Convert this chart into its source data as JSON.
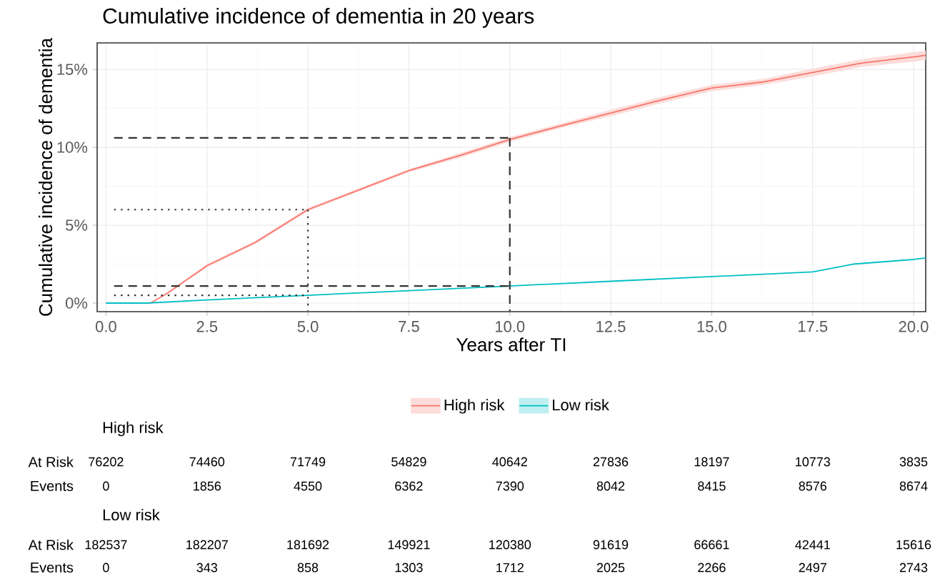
{
  "chart_data": {
    "type": "line",
    "title": "Cumulative incidence of dementia in 20 years",
    "xlabel": "Years after TI",
    "ylabel": "Cumulative incidence of dementia",
    "xlim": [
      -0.22,
      20.3
    ],
    "ylim": [
      -0.55,
      16.7
    ],
    "xticks": [
      {
        "value": 0,
        "label": "0.0"
      },
      {
        "value": 2.5,
        "label": "2.5"
      },
      {
        "value": 5,
        "label": "5.0"
      },
      {
        "value": 7.5,
        "label": "7.5"
      },
      {
        "value": 10,
        "label": "10.0"
      },
      {
        "value": 12.5,
        "label": "12.5"
      },
      {
        "value": 15,
        "label": "15.0"
      },
      {
        "value": 17.5,
        "label": "17.5"
      },
      {
        "value": 20,
        "label": "20.0"
      }
    ],
    "yticks": [
      {
        "value": 0,
        "label": "0%"
      },
      {
        "value": 5,
        "label": "5%"
      },
      {
        "value": 10,
        "label": "10%"
      },
      {
        "value": 15,
        "label": "15%"
      }
    ],
    "grid": true,
    "legend": "bottom",
    "series": [
      {
        "name": "High risk",
        "color": "#f8766d",
        "x": [
          0,
          1.1,
          1.5,
          2.5,
          3.7,
          5,
          6.3,
          7.5,
          8.8,
          10,
          11.3,
          12.5,
          13.7,
          15,
          16.3,
          17.5,
          18.7,
          20,
          20.3
        ],
        "values": [
          0,
          0,
          0.6,
          2.4,
          3.9,
          6.0,
          7.3,
          8.5,
          9.5,
          10.5,
          11.4,
          12.2,
          13.0,
          13.8,
          14.2,
          14.8,
          15.4,
          15.8,
          15.9
        ],
        "lower": [
          0,
          0,
          0.55,
          2.3,
          3.8,
          5.9,
          7.2,
          8.4,
          9.35,
          10.35,
          11.25,
          12.0,
          12.8,
          13.6,
          14.0,
          14.55,
          15.15,
          15.5,
          15.6
        ],
        "upper": [
          0,
          0,
          0.65,
          2.5,
          4.0,
          6.1,
          7.4,
          8.6,
          9.65,
          10.65,
          11.55,
          12.4,
          13.2,
          14.0,
          14.4,
          15.05,
          15.65,
          16.1,
          16.2
        ]
      },
      {
        "name": "Low risk",
        "color": "#00bfc4",
        "x": [
          0,
          1,
          2.5,
          5,
          7.5,
          10,
          12.5,
          15,
          17.5,
          18.5,
          20,
          20.3
        ],
        "values": [
          0,
          0,
          0.2,
          0.5,
          0.8,
          1.1,
          1.4,
          1.7,
          2.0,
          2.5,
          2.8,
          2.9
        ]
      },
      {
        "color": "#333333",
        "line_style": "dotted",
        "x": [
          0.2,
          5
        ],
        "values": [
          6.0,
          6.0
        ]
      },
      {
        "color": "#333333",
        "line_style": "dotted",
        "x": [
          5,
          5
        ],
        "values": [
          6.0,
          -0.5
        ]
      },
      {
        "color": "#333333",
        "line_style": "dotted",
        "x": [
          0.2,
          5
        ],
        "values": [
          0.5,
          0.5
        ]
      },
      {
        "color": "#333333",
        "line_style": "dashed",
        "x": [
          0.2,
          10
        ],
        "values": [
          10.6,
          10.6
        ]
      },
      {
        "color": "#333333",
        "line_style": "dashed",
        "x": [
          10,
          10
        ],
        "values": [
          10.6,
          -0.5
        ]
      },
      {
        "color": "#333333",
        "line_style": "dashed",
        "x": [
          0.2,
          10
        ],
        "values": [
          1.1,
          1.1
        ]
      }
    ],
    "annotations": [
      "High risk",
      "At Risk",
      "Events",
      "Low risk",
      "At Risk",
      "Events",
      "76202",
      "74460",
      "71749",
      "54829",
      "40642",
      "27836",
      "18197",
      "10773",
      "3835",
      "0",
      "1856",
      "4550",
      "6362",
      "7390",
      "8042",
      "8415",
      "8576",
      "8674",
      "182537",
      "182207",
      "181692",
      "149921",
      "120380",
      "91619",
      "66661",
      "42441",
      "15616",
      "0",
      "343",
      "858",
      "1303",
      "1712",
      "2025",
      "2266",
      "2497",
      "2743"
    ]
  }
}
